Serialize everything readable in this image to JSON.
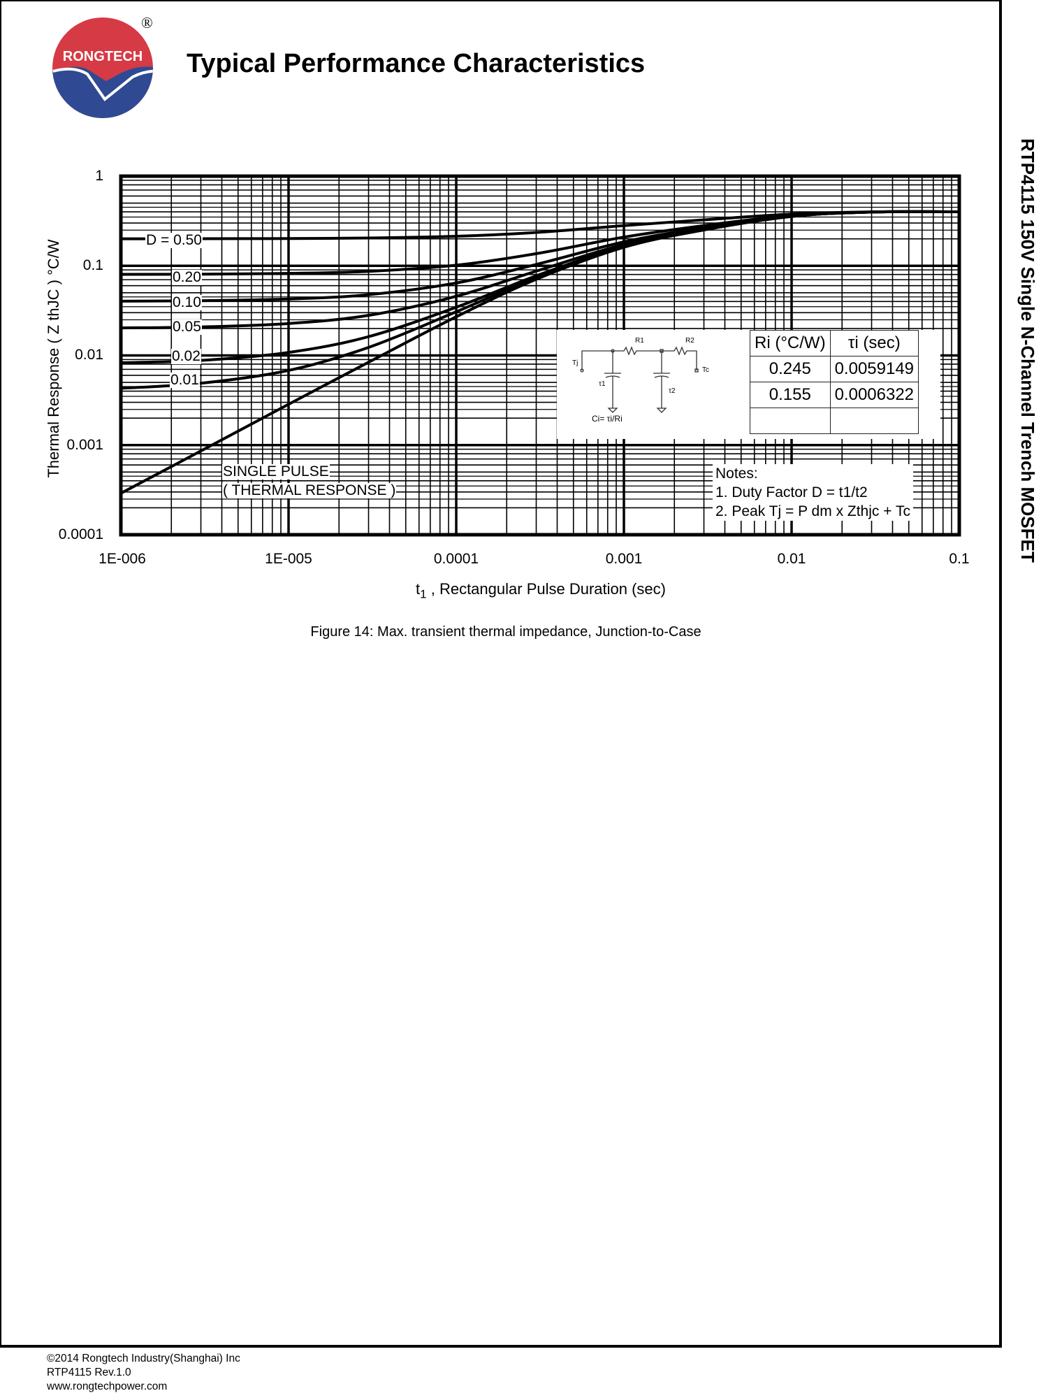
{
  "header": {
    "logo_text": "RONGTECH",
    "registered_mark": "®",
    "title": "Typical Performance Characteristics",
    "side_title": "RTP4115 150V Single N-Channel Trench MOSFET"
  },
  "colors": {
    "logo_red": "#d63a45",
    "logo_blue": "#2f4a93",
    "line": "#000000"
  },
  "chart_data": {
    "type": "line",
    "title": "",
    "xlabel_sub": "1",
    "xlabel_prefix": "t",
    "xlabel": ", Rectangular Pulse Duration (sec)",
    "ylabel": "Thermal Response ( Z thJC ) °C/W",
    "xscale": "log",
    "yscale": "log",
    "xlim": [
      1e-06,
      0.1
    ],
    "ylim": [
      0.0001,
      1
    ],
    "grid": true,
    "x_ticks": [
      "1E-006",
      "1E-005",
      "0.0001",
      "0.001",
      "0.01",
      "0.1"
    ],
    "y_ticks": [
      "1",
      "0.1",
      "0.01",
      "0.001",
      "0.0001"
    ],
    "x": [
      1e-06,
      3e-06,
      1e-05,
      3e-05,
      0.0001,
      0.0003,
      0.001,
      0.003,
      0.01,
      0.03,
      0.1
    ],
    "series": [
      {
        "name": "D = 0.50",
        "values": [
          0.2001,
          0.2004,
          0.2014,
          0.2042,
          0.2135,
          0.2354,
          0.2805,
          0.3255,
          0.3775,
          0.399,
          0.4
        ]
      },
      {
        "name": "0.20",
        "values": [
          0.0802,
          0.0807,
          0.0823,
          0.0867,
          0.1016,
          0.1366,
          0.2088,
          0.2808,
          0.364,
          0.398,
          0.4
        ]
      },
      {
        "name": "0.10",
        "values": [
          0.0403,
          0.0408,
          0.0426,
          0.0476,
          0.0643,
          0.1036,
          0.1849,
          0.2659,
          0.3595,
          0.398,
          0.4
        ]
      },
      {
        "name": "0.05",
        "values": [
          0.0203,
          0.0208,
          0.0227,
          0.028,
          0.0457,
          0.0872,
          0.173,
          0.2585,
          0.3573,
          0.398,
          0.4
        ]
      },
      {
        "name": "0.02",
        "values": [
          0.0083,
          0.0088,
          0.0108,
          0.0162,
          0.0345,
          0.0773,
          0.1658,
          0.254,
          0.356,
          0.398,
          0.4
        ]
      },
      {
        "name": "0.01",
        "values": [
          0.0043,
          0.0049,
          0.0068,
          0.0123,
          0.0307,
          0.074,
          0.1634,
          0.2525,
          0.3555,
          0.398,
          0.4
        ]
      },
      {
        "name": "SINGLE PULSE",
        "values": [
          0.00029,
          0.00086,
          0.00285,
          0.0084,
          0.027,
          0.0707,
          0.161,
          0.251,
          0.355,
          0.398,
          0.4
        ]
      }
    ],
    "annotations": {
      "single_pulse_1": "SINGLE PULSE",
      "single_pulse_2": "( THERMAL RESPONSE )",
      "notes_title": "Notes:",
      "note_1": "1. Duty Factor D = t1/t2",
      "note_2": "2. Peak Tj = P dm x Zthjc + Tc"
    },
    "rc_table": {
      "headers": [
        "Ri (°C/W)",
        "τi (sec)"
      ],
      "rows": [
        [
          "0.245",
          "0.0059149"
        ],
        [
          "0.155",
          "0.0006322"
        ],
        [
          "",
          ""
        ]
      ]
    },
    "circuit": {
      "r1": "R1",
      "r2": "R2",
      "tj": "Tj",
      "tc": "Tc",
      "t1": "τ1",
      "t2": "τ2",
      "formula": "Ci= τi/Ri"
    }
  },
  "caption": "Figure 14: Max. transient thermal impedance, Junction-to-Case",
  "footer": {
    "copyright": "©2014 Rongtech Industry(Shanghai) Inc",
    "revision": "RTP4115 Rev.1.0",
    "website": "www.rongtechpower.com"
  }
}
